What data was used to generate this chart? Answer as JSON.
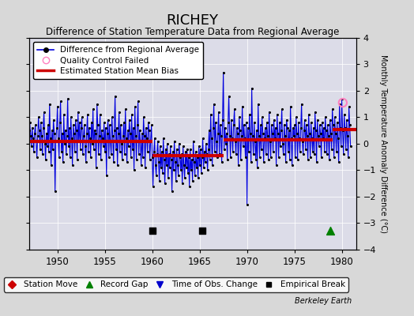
{
  "title": "RICHEY",
  "subtitle": "Difference of Station Temperature Data from Regional Average",
  "ylabel_right": "Monthly Temperature Anomaly Difference (°C)",
  "xlim": [
    1947.0,
    1981.5
  ],
  "ylim": [
    -4,
    4
  ],
  "yticks": [
    -4,
    -3,
    -2,
    -1,
    0,
    1,
    2,
    3,
    4
  ],
  "xticks": [
    1950,
    1955,
    1960,
    1965,
    1970,
    1975,
    1980
  ],
  "figure_bg": "#d8d8d8",
  "plot_bg": "#dcdce8",
  "line_color": "#0000dd",
  "dot_color": "#000000",
  "bias_color": "#cc0000",
  "bias_segments": [
    {
      "xstart": 1947.0,
      "xend": 1960.0,
      "bias": 0.1
    },
    {
      "xstart": 1960.0,
      "xend": 1967.5,
      "bias": -0.45
    },
    {
      "xstart": 1967.5,
      "xend": 1979.0,
      "bias": 0.15
    },
    {
      "xstart": 1979.0,
      "xend": 1981.5,
      "bias": 0.55
    }
  ],
  "empirical_breaks": [
    1960.0,
    1965.3
  ],
  "record_gaps": [
    1978.8
  ],
  "qc_failed_x": [
    1980.1
  ],
  "qc_failed_y": [
    1.55
  ],
  "data": [
    [
      1947.0,
      0.5
    ],
    [
      1947.08,
      0.8
    ],
    [
      1947.17,
      0.3
    ],
    [
      1947.25,
      -0.1
    ],
    [
      1947.33,
      0.6
    ],
    [
      1947.42,
      0.2
    ],
    [
      1947.5,
      -0.3
    ],
    [
      1947.58,
      0.4
    ],
    [
      1947.67,
      0.7
    ],
    [
      1947.75,
      0.1
    ],
    [
      1947.83,
      -0.5
    ],
    [
      1947.92,
      0.3
    ],
    [
      1948.0,
      1.0
    ],
    [
      1948.08,
      0.5
    ],
    [
      1948.17,
      -0.2
    ],
    [
      1948.25,
      0.8
    ],
    [
      1948.33,
      0.3
    ],
    [
      1948.42,
      -0.4
    ],
    [
      1948.5,
      0.6
    ],
    [
      1948.58,
      1.2
    ],
    [
      1948.67,
      0.0
    ],
    [
      1948.75,
      -0.6
    ],
    [
      1948.83,
      0.4
    ],
    [
      1948.92,
      -0.1
    ],
    [
      1949.0,
      0.7
    ],
    [
      1949.08,
      -0.3
    ],
    [
      1949.17,
      1.5
    ],
    [
      1949.25,
      0.2
    ],
    [
      1949.33,
      -0.8
    ],
    [
      1949.42,
      0.5
    ],
    [
      1949.5,
      -0.2
    ],
    [
      1949.58,
      0.9
    ],
    [
      1949.67,
      0.4
    ],
    [
      1949.75,
      -1.8
    ],
    [
      1949.83,
      0.1
    ],
    [
      1949.92,
      0.6
    ],
    [
      1950.0,
      1.4
    ],
    [
      1950.08,
      0.2
    ],
    [
      1950.17,
      -0.5
    ],
    [
      1950.25,
      0.8
    ],
    [
      1950.33,
      1.6
    ],
    [
      1950.42,
      -0.3
    ],
    [
      1950.5,
      0.4
    ],
    [
      1950.58,
      -0.7
    ],
    [
      1950.67,
      1.1
    ],
    [
      1950.75,
      0.0
    ],
    [
      1950.83,
      0.5
    ],
    [
      1950.92,
      -0.4
    ],
    [
      1951.0,
      0.3
    ],
    [
      1951.08,
      1.7
    ],
    [
      1951.17,
      -0.1
    ],
    [
      1951.25,
      0.6
    ],
    [
      1951.33,
      -0.5
    ],
    [
      1951.42,
      1.0
    ],
    [
      1951.5,
      0.2
    ],
    [
      1951.58,
      -0.8
    ],
    [
      1951.67,
      0.7
    ],
    [
      1951.75,
      0.4
    ],
    [
      1951.83,
      -0.3
    ],
    [
      1951.92,
      0.9
    ],
    [
      1952.0,
      0.5
    ],
    [
      1952.08,
      -0.6
    ],
    [
      1952.17,
      1.2
    ],
    [
      1952.25,
      0.1
    ],
    [
      1952.33,
      0.8
    ],
    [
      1952.42,
      -0.2
    ],
    [
      1952.5,
      0.6
    ],
    [
      1952.58,
      1.0
    ],
    [
      1952.67,
      -0.4
    ],
    [
      1952.75,
      0.3
    ],
    [
      1952.83,
      0.7
    ],
    [
      1952.92,
      -0.1
    ],
    [
      1953.0,
      -0.7
    ],
    [
      1953.08,
      0.4
    ],
    [
      1953.17,
      1.1
    ],
    [
      1953.25,
      -0.3
    ],
    [
      1953.33,
      0.6
    ],
    [
      1953.42,
      0.2
    ],
    [
      1953.5,
      -0.5
    ],
    [
      1953.58,
      0.8
    ],
    [
      1953.67,
      0.0
    ],
    [
      1953.75,
      1.3
    ],
    [
      1953.83,
      -0.2
    ],
    [
      1953.92,
      0.5
    ],
    [
      1954.0,
      0.4
    ],
    [
      1954.08,
      -0.9
    ],
    [
      1954.17,
      1.5
    ],
    [
      1954.25,
      0.7
    ],
    [
      1954.33,
      -0.4
    ],
    [
      1954.42,
      0.3
    ],
    [
      1954.5,
      1.1
    ],
    [
      1954.58,
      -0.6
    ],
    [
      1954.67,
      0.5
    ],
    [
      1954.75,
      0.2
    ],
    [
      1954.83,
      -0.1
    ],
    [
      1954.92,
      0.8
    ],
    [
      1955.0,
      -0.3
    ],
    [
      1955.08,
      0.6
    ],
    [
      1955.17,
      -1.2
    ],
    [
      1955.25,
      0.4
    ],
    [
      1955.33,
      0.9
    ],
    [
      1955.42,
      -0.5
    ],
    [
      1955.5,
      0.7
    ],
    [
      1955.58,
      0.1
    ],
    [
      1955.67,
      -0.4
    ],
    [
      1955.75,
      1.0
    ],
    [
      1955.83,
      0.3
    ],
    [
      1955.92,
      -0.7
    ],
    [
      1956.0,
      0.5
    ],
    [
      1956.08,
      1.8
    ],
    [
      1956.17,
      -0.2
    ],
    [
      1956.25,
      0.6
    ],
    [
      1956.33,
      -0.8
    ],
    [
      1956.42,
      0.4
    ],
    [
      1956.5,
      1.2
    ],
    [
      1956.58,
      -0.3
    ],
    [
      1956.67,
      0.7
    ],
    [
      1956.75,
      0.0
    ],
    [
      1956.83,
      -0.6
    ],
    [
      1956.92,
      0.3
    ],
    [
      1957.0,
      0.8
    ],
    [
      1957.08,
      -0.4
    ],
    [
      1957.17,
      1.3
    ],
    [
      1957.25,
      0.2
    ],
    [
      1957.33,
      -0.7
    ],
    [
      1957.42,
      0.5
    ],
    [
      1957.5,
      -0.1
    ],
    [
      1957.58,
      0.9
    ],
    [
      1957.67,
      0.4
    ],
    [
      1957.75,
      -0.5
    ],
    [
      1957.83,
      1.1
    ],
    [
      1957.92,
      -0.2
    ],
    [
      1958.0,
      0.6
    ],
    [
      1958.08,
      -1.0
    ],
    [
      1958.17,
      1.4
    ],
    [
      1958.25,
      0.3
    ],
    [
      1958.33,
      -0.6
    ],
    [
      1958.42,
      0.7
    ],
    [
      1958.5,
      1.6
    ],
    [
      1958.58,
      -0.4
    ],
    [
      1958.67,
      0.5
    ],
    [
      1958.75,
      0.1
    ],
    [
      1958.83,
      -0.8
    ],
    [
      1958.92,
      0.4
    ],
    [
      1959.0,
      -0.5
    ],
    [
      1959.08,
      1.0
    ],
    [
      1959.17,
      0.3
    ],
    [
      1959.25,
      -0.9
    ],
    [
      1959.33,
      0.6
    ],
    [
      1959.42,
      0.2
    ],
    [
      1959.5,
      -0.3
    ],
    [
      1959.58,
      0.8
    ],
    [
      1959.67,
      0.5
    ],
    [
      1959.75,
      -0.6
    ],
    [
      1959.83,
      0.1
    ],
    [
      1959.92,
      0.7
    ],
    [
      1960.0,
      -0.5
    ],
    [
      1960.08,
      -1.6
    ],
    [
      1960.17,
      -0.3
    ],
    [
      1960.25,
      0.2
    ],
    [
      1960.33,
      -0.8
    ],
    [
      1960.42,
      -1.2
    ],
    [
      1960.5,
      -0.4
    ],
    [
      1960.58,
      0.1
    ],
    [
      1960.67,
      -0.7
    ],
    [
      1960.75,
      -1.4
    ],
    [
      1960.83,
      -0.1
    ],
    [
      1960.92,
      -0.9
    ],
    [
      1961.0,
      -0.3
    ],
    [
      1961.08,
      -1.1
    ],
    [
      1961.17,
      0.2
    ],
    [
      1961.25,
      -0.6
    ],
    [
      1961.33,
      -1.5
    ],
    [
      1961.42,
      -0.2
    ],
    [
      1961.5,
      -0.8
    ],
    [
      1961.58,
      0.0
    ],
    [
      1961.67,
      -1.3
    ],
    [
      1961.75,
      -0.4
    ],
    [
      1961.83,
      -0.9
    ],
    [
      1961.92,
      -0.1
    ],
    [
      1962.0,
      -0.6
    ],
    [
      1962.08,
      -1.8
    ],
    [
      1962.17,
      -0.3
    ],
    [
      1962.25,
      -1.0
    ],
    [
      1962.33,
      0.1
    ],
    [
      1962.42,
      -0.7
    ],
    [
      1962.5,
      -1.4
    ],
    [
      1962.58,
      -0.2
    ],
    [
      1962.67,
      -0.8
    ],
    [
      1962.75,
      -1.2
    ],
    [
      1962.83,
      0.0
    ],
    [
      1962.92,
      -0.5
    ],
    [
      1963.0,
      -1.0
    ],
    [
      1963.08,
      -0.4
    ],
    [
      1963.17,
      -1.5
    ],
    [
      1963.25,
      -0.1
    ],
    [
      1963.33,
      -0.8
    ],
    [
      1963.42,
      -1.3
    ],
    [
      1963.5,
      -0.3
    ],
    [
      1963.58,
      -0.9
    ],
    [
      1963.67,
      -0.2
    ],
    [
      1963.75,
      -1.1
    ],
    [
      1963.83,
      -0.5
    ],
    [
      1963.92,
      -1.6
    ],
    [
      1964.0,
      -0.2
    ],
    [
      1964.08,
      -1.0
    ],
    [
      1964.17,
      -0.6
    ],
    [
      1964.25,
      -1.4
    ],
    [
      1964.33,
      0.1
    ],
    [
      1964.42,
      -0.7
    ],
    [
      1964.5,
      -1.2
    ],
    [
      1964.58,
      -0.3
    ],
    [
      1964.67,
      -0.9
    ],
    [
      1964.75,
      -0.5
    ],
    [
      1964.83,
      -1.3
    ],
    [
      1964.92,
      -0.1
    ],
    [
      1965.0,
      -0.8
    ],
    [
      1965.08,
      -0.2
    ],
    [
      1965.17,
      -1.1
    ],
    [
      1965.25,
      -0.5
    ],
    [
      1965.33,
      0.2
    ],
    [
      1965.42,
      -0.9
    ],
    [
      1965.5,
      -0.3
    ],
    [
      1965.58,
      -0.7
    ],
    [
      1965.67,
      0.0
    ],
    [
      1965.75,
      -0.4
    ],
    [
      1965.83,
      -1.0
    ],
    [
      1965.92,
      -0.2
    ],
    [
      1966.0,
      0.5
    ],
    [
      1966.08,
      -0.6
    ],
    [
      1966.17,
      1.1
    ],
    [
      1966.25,
      0.2
    ],
    [
      1966.33,
      -0.8
    ],
    [
      1966.42,
      0.6
    ],
    [
      1966.5,
      1.5
    ],
    [
      1966.58,
      -0.3
    ],
    [
      1966.67,
      0.8
    ],
    [
      1966.75,
      0.1
    ],
    [
      1966.83,
      -0.5
    ],
    [
      1966.92,
      0.4
    ],
    [
      1967.0,
      1.2
    ],
    [
      1967.08,
      -0.4
    ],
    [
      1967.17,
      0.7
    ],
    [
      1967.25,
      0.3
    ],
    [
      1967.33,
      -0.7
    ],
    [
      1967.42,
      0.9
    ],
    [
      1967.5,
      2.7
    ],
    [
      1967.58,
      -0.2
    ],
    [
      1967.67,
      0.6
    ],
    [
      1967.75,
      0.0
    ],
    [
      1967.83,
      0.4
    ],
    [
      1967.92,
      -0.6
    ],
    [
      1968.0,
      0.8
    ],
    [
      1968.08,
      1.8
    ],
    [
      1968.17,
      0.3
    ],
    [
      1968.25,
      -0.5
    ],
    [
      1968.33,
      0.9
    ],
    [
      1968.42,
      0.2
    ],
    [
      1968.5,
      -0.3
    ],
    [
      1968.58,
      0.7
    ],
    [
      1968.67,
      1.3
    ],
    [
      1968.75,
      0.1
    ],
    [
      1968.83,
      -0.4
    ],
    [
      1968.92,
      0.6
    ],
    [
      1969.0,
      0.4
    ],
    [
      1969.08,
      -0.8
    ],
    [
      1969.17,
      1.0
    ],
    [
      1969.25,
      0.5
    ],
    [
      1969.33,
      -0.6
    ],
    [
      1969.42,
      0.3
    ],
    [
      1969.5,
      1.4
    ],
    [
      1969.58,
      -0.1
    ],
    [
      1969.67,
      0.7
    ],
    [
      1969.75,
      0.2
    ],
    [
      1969.83,
      -0.5
    ],
    [
      1969.92,
      0.8
    ],
    [
      1970.0,
      -2.3
    ],
    [
      1970.08,
      0.6
    ],
    [
      1970.17,
      -0.3
    ],
    [
      1970.25,
      1.1
    ],
    [
      1970.33,
      0.4
    ],
    [
      1970.42,
      -0.7
    ],
    [
      1970.5,
      2.1
    ],
    [
      1970.58,
      0.3
    ],
    [
      1970.67,
      -0.4
    ],
    [
      1970.75,
      0.8
    ],
    [
      1970.83,
      0.1
    ],
    [
      1970.92,
      -0.6
    ],
    [
      1971.0,
      0.5
    ],
    [
      1971.08,
      -0.9
    ],
    [
      1971.17,
      1.5
    ],
    [
      1971.25,
      0.3
    ],
    [
      1971.33,
      -0.5
    ],
    [
      1971.42,
      0.7
    ],
    [
      1971.5,
      -0.2
    ],
    [
      1971.58,
      1.0
    ],
    [
      1971.67,
      0.4
    ],
    [
      1971.75,
      -0.7
    ],
    [
      1971.83,
      0.2
    ],
    [
      1971.92,
      0.6
    ],
    [
      1972.0,
      -0.4
    ],
    [
      1972.08,
      0.8
    ],
    [
      1972.17,
      0.3
    ],
    [
      1972.25,
      -0.6
    ],
    [
      1972.33,
      1.2
    ],
    [
      1972.42,
      0.1
    ],
    [
      1972.5,
      -0.5
    ],
    [
      1972.58,
      0.7
    ],
    [
      1972.67,
      0.4
    ],
    [
      1972.75,
      -0.3
    ],
    [
      1972.83,
      0.9
    ],
    [
      1972.92,
      0.2
    ],
    [
      1973.0,
      0.6
    ],
    [
      1973.08,
      -0.8
    ],
    [
      1973.17,
      1.1
    ],
    [
      1973.25,
      0.4
    ],
    [
      1973.33,
      -0.5
    ],
    [
      1973.42,
      0.8
    ],
    [
      1973.5,
      -0.1
    ],
    [
      1973.58,
      0.5
    ],
    [
      1973.67,
      1.3
    ],
    [
      1973.75,
      0.0
    ],
    [
      1973.83,
      -0.4
    ],
    [
      1973.92,
      0.7
    ],
    [
      1974.0,
      0.3
    ],
    [
      1974.08,
      -0.7
    ],
    [
      1974.17,
      0.9
    ],
    [
      1974.25,
      0.6
    ],
    [
      1974.33,
      -0.3
    ],
    [
      1974.42,
      0.5
    ],
    [
      1974.5,
      -0.6
    ],
    [
      1974.58,
      1.4
    ],
    [
      1974.67,
      0.2
    ],
    [
      1974.75,
      -0.8
    ],
    [
      1974.83,
      0.6
    ],
    [
      1974.92,
      0.3
    ],
    [
      1975.0,
      0.7
    ],
    [
      1975.08,
      -0.5
    ],
    [
      1975.17,
      1.0
    ],
    [
      1975.25,
      0.4
    ],
    [
      1975.33,
      -0.6
    ],
    [
      1975.42,
      0.8
    ],
    [
      1975.5,
      0.2
    ],
    [
      1975.58,
      -0.3
    ],
    [
      1975.67,
      0.6
    ],
    [
      1975.75,
      1.5
    ],
    [
      1975.83,
      0.1
    ],
    [
      1975.92,
      -0.4
    ],
    [
      1976.0,
      0.5
    ],
    [
      1976.08,
      0.9
    ],
    [
      1976.17,
      -0.2
    ],
    [
      1976.25,
      0.7
    ],
    [
      1976.33,
      0.3
    ],
    [
      1976.42,
      -0.6
    ],
    [
      1976.5,
      1.1
    ],
    [
      1976.58,
      0.4
    ],
    [
      1976.67,
      -0.5
    ],
    [
      1976.75,
      0.8
    ],
    [
      1976.83,
      0.2
    ],
    [
      1976.92,
      -0.3
    ],
    [
      1977.0,
      0.6
    ],
    [
      1977.08,
      -0.4
    ],
    [
      1977.17,
      1.2
    ],
    [
      1977.25,
      0.5
    ],
    [
      1977.33,
      -0.7
    ],
    [
      1977.42,
      0.9
    ],
    [
      1977.5,
      0.3
    ],
    [
      1977.58,
      -0.1
    ],
    [
      1977.67,
      0.7
    ],
    [
      1977.75,
      0.4
    ],
    [
      1977.83,
      -0.5
    ],
    [
      1977.92,
      0.8
    ],
    [
      1978.0,
      0.2
    ],
    [
      1978.08,
      0.6
    ],
    [
      1978.17,
      -0.3
    ],
    [
      1978.25,
      1.0
    ],
    [
      1978.33,
      0.5
    ],
    [
      1978.42,
      -0.4
    ],
    [
      1978.5,
      0.7
    ],
    [
      1978.58,
      0.3
    ],
    [
      1978.67,
      -0.6
    ],
    [
      1978.75,
      0.9
    ],
    [
      1978.83,
      0.4
    ],
    [
      1978.92,
      -0.2
    ],
    [
      1979.0,
      1.3
    ],
    [
      1979.08,
      0.7
    ],
    [
      1979.17,
      -0.5
    ],
    [
      1979.25,
      1.0
    ],
    [
      1979.33,
      0.4
    ],
    [
      1979.42,
      -0.3
    ],
    [
      1979.5,
      0.8
    ],
    [
      1979.58,
      0.2
    ],
    [
      1979.67,
      -0.7
    ],
    [
      1979.75,
      1.5
    ],
    [
      1979.83,
      0.6
    ],
    [
      1979.92,
      -0.1
    ],
    [
      1980.0,
      1.7
    ],
    [
      1980.08,
      0.5
    ],
    [
      1980.17,
      -0.4
    ],
    [
      1980.25,
      1.1
    ],
    [
      1980.33,
      0.6
    ],
    [
      1980.42,
      -0.2
    ],
    [
      1980.5,
      0.9
    ],
    [
      1980.58,
      0.3
    ],
    [
      1980.67,
      -0.5
    ],
    [
      1980.75,
      1.4
    ],
    [
      1980.83,
      0.7
    ],
    [
      1980.92,
      -0.1
    ]
  ]
}
